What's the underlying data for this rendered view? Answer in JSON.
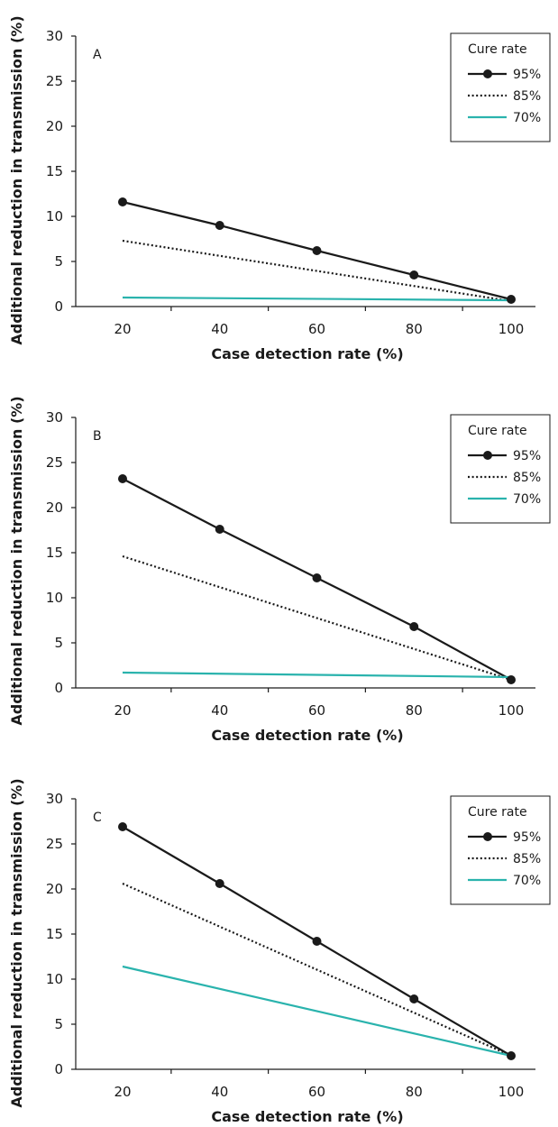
{
  "chart_data": [
    {
      "type": "line",
      "panel_label": "A",
      "xlabel": "Case detection rate (%)",
      "ylabel": "Additional reduction in transmission (%)",
      "x": [
        20,
        40,
        60,
        80,
        100
      ],
      "xticks": [
        "20",
        "40",
        "60",
        "80",
        "100"
      ],
      "yticks": [
        "0",
        "5",
        "10",
        "15",
        "20",
        "25",
        "30"
      ],
      "xlim": [
        20,
        100
      ],
      "ylim": [
        0,
        30
      ],
      "grid": false,
      "legend_title": "Cure rate",
      "legend_position": "top-right",
      "series": [
        {
          "name": "95%",
          "style": "solid-markers",
          "color": "#1a1a1a",
          "values": [
            11.6,
            9.0,
            6.2,
            3.5,
            0.8
          ]
        },
        {
          "name": "85%",
          "style": "dotted",
          "color": "#1a1a1a",
          "values": [
            7.3,
            null,
            null,
            null,
            0.6
          ]
        },
        {
          "name": "70%",
          "style": "solid",
          "color": "#2ab3ad",
          "values": [
            1.0,
            null,
            null,
            null,
            0.7
          ]
        }
      ]
    },
    {
      "type": "line",
      "panel_label": "B",
      "xlabel": "Case detection rate (%)",
      "ylabel": "Additional reduction in transmission (%)",
      "x": [
        20,
        40,
        60,
        80,
        100
      ],
      "xticks": [
        "20",
        "40",
        "60",
        "80",
        "100"
      ],
      "yticks": [
        "0",
        "5",
        "10",
        "15",
        "20",
        "25",
        "30"
      ],
      "xlim": [
        20,
        100
      ],
      "ylim": [
        0,
        30
      ],
      "grid": false,
      "legend_title": "Cure rate",
      "legend_position": "top-right",
      "series": [
        {
          "name": "95%",
          "style": "solid-markers",
          "color": "#1a1a1a",
          "values": [
            23.2,
            17.6,
            12.2,
            6.8,
            0.9
          ]
        },
        {
          "name": "85%",
          "style": "dotted",
          "color": "#1a1a1a",
          "values": [
            14.6,
            null,
            null,
            null,
            0.9
          ]
        },
        {
          "name": "70%",
          "style": "solid",
          "color": "#2ab3ad",
          "values": [
            1.7,
            null,
            null,
            null,
            1.2
          ]
        }
      ]
    },
    {
      "type": "line",
      "panel_label": "C",
      "xlabel": "Case detection rate (%)",
      "ylabel": "Additional reduction in transmission (%)",
      "x": [
        20,
        40,
        60,
        80,
        100
      ],
      "xticks": [
        "20",
        "40",
        "60",
        "80",
        "100"
      ],
      "yticks": [
        "0",
        "5",
        "10",
        "15",
        "20",
        "25",
        "30"
      ],
      "xlim": [
        20,
        100
      ],
      "ylim": [
        0,
        30
      ],
      "grid": false,
      "legend_title": "Cure rate",
      "legend_position": "top-right",
      "series": [
        {
          "name": "95%",
          "style": "solid-markers",
          "color": "#1a1a1a",
          "values": [
            26.9,
            20.6,
            14.2,
            7.8,
            1.5
          ]
        },
        {
          "name": "85%",
          "style": "dotted",
          "color": "#1a1a1a",
          "values": [
            20.6,
            null,
            null,
            null,
            1.5
          ]
        },
        {
          "name": "70%",
          "style": "solid",
          "color": "#2ab3ad",
          "values": [
            11.4,
            null,
            null,
            null,
            1.5
          ]
        }
      ]
    }
  ]
}
